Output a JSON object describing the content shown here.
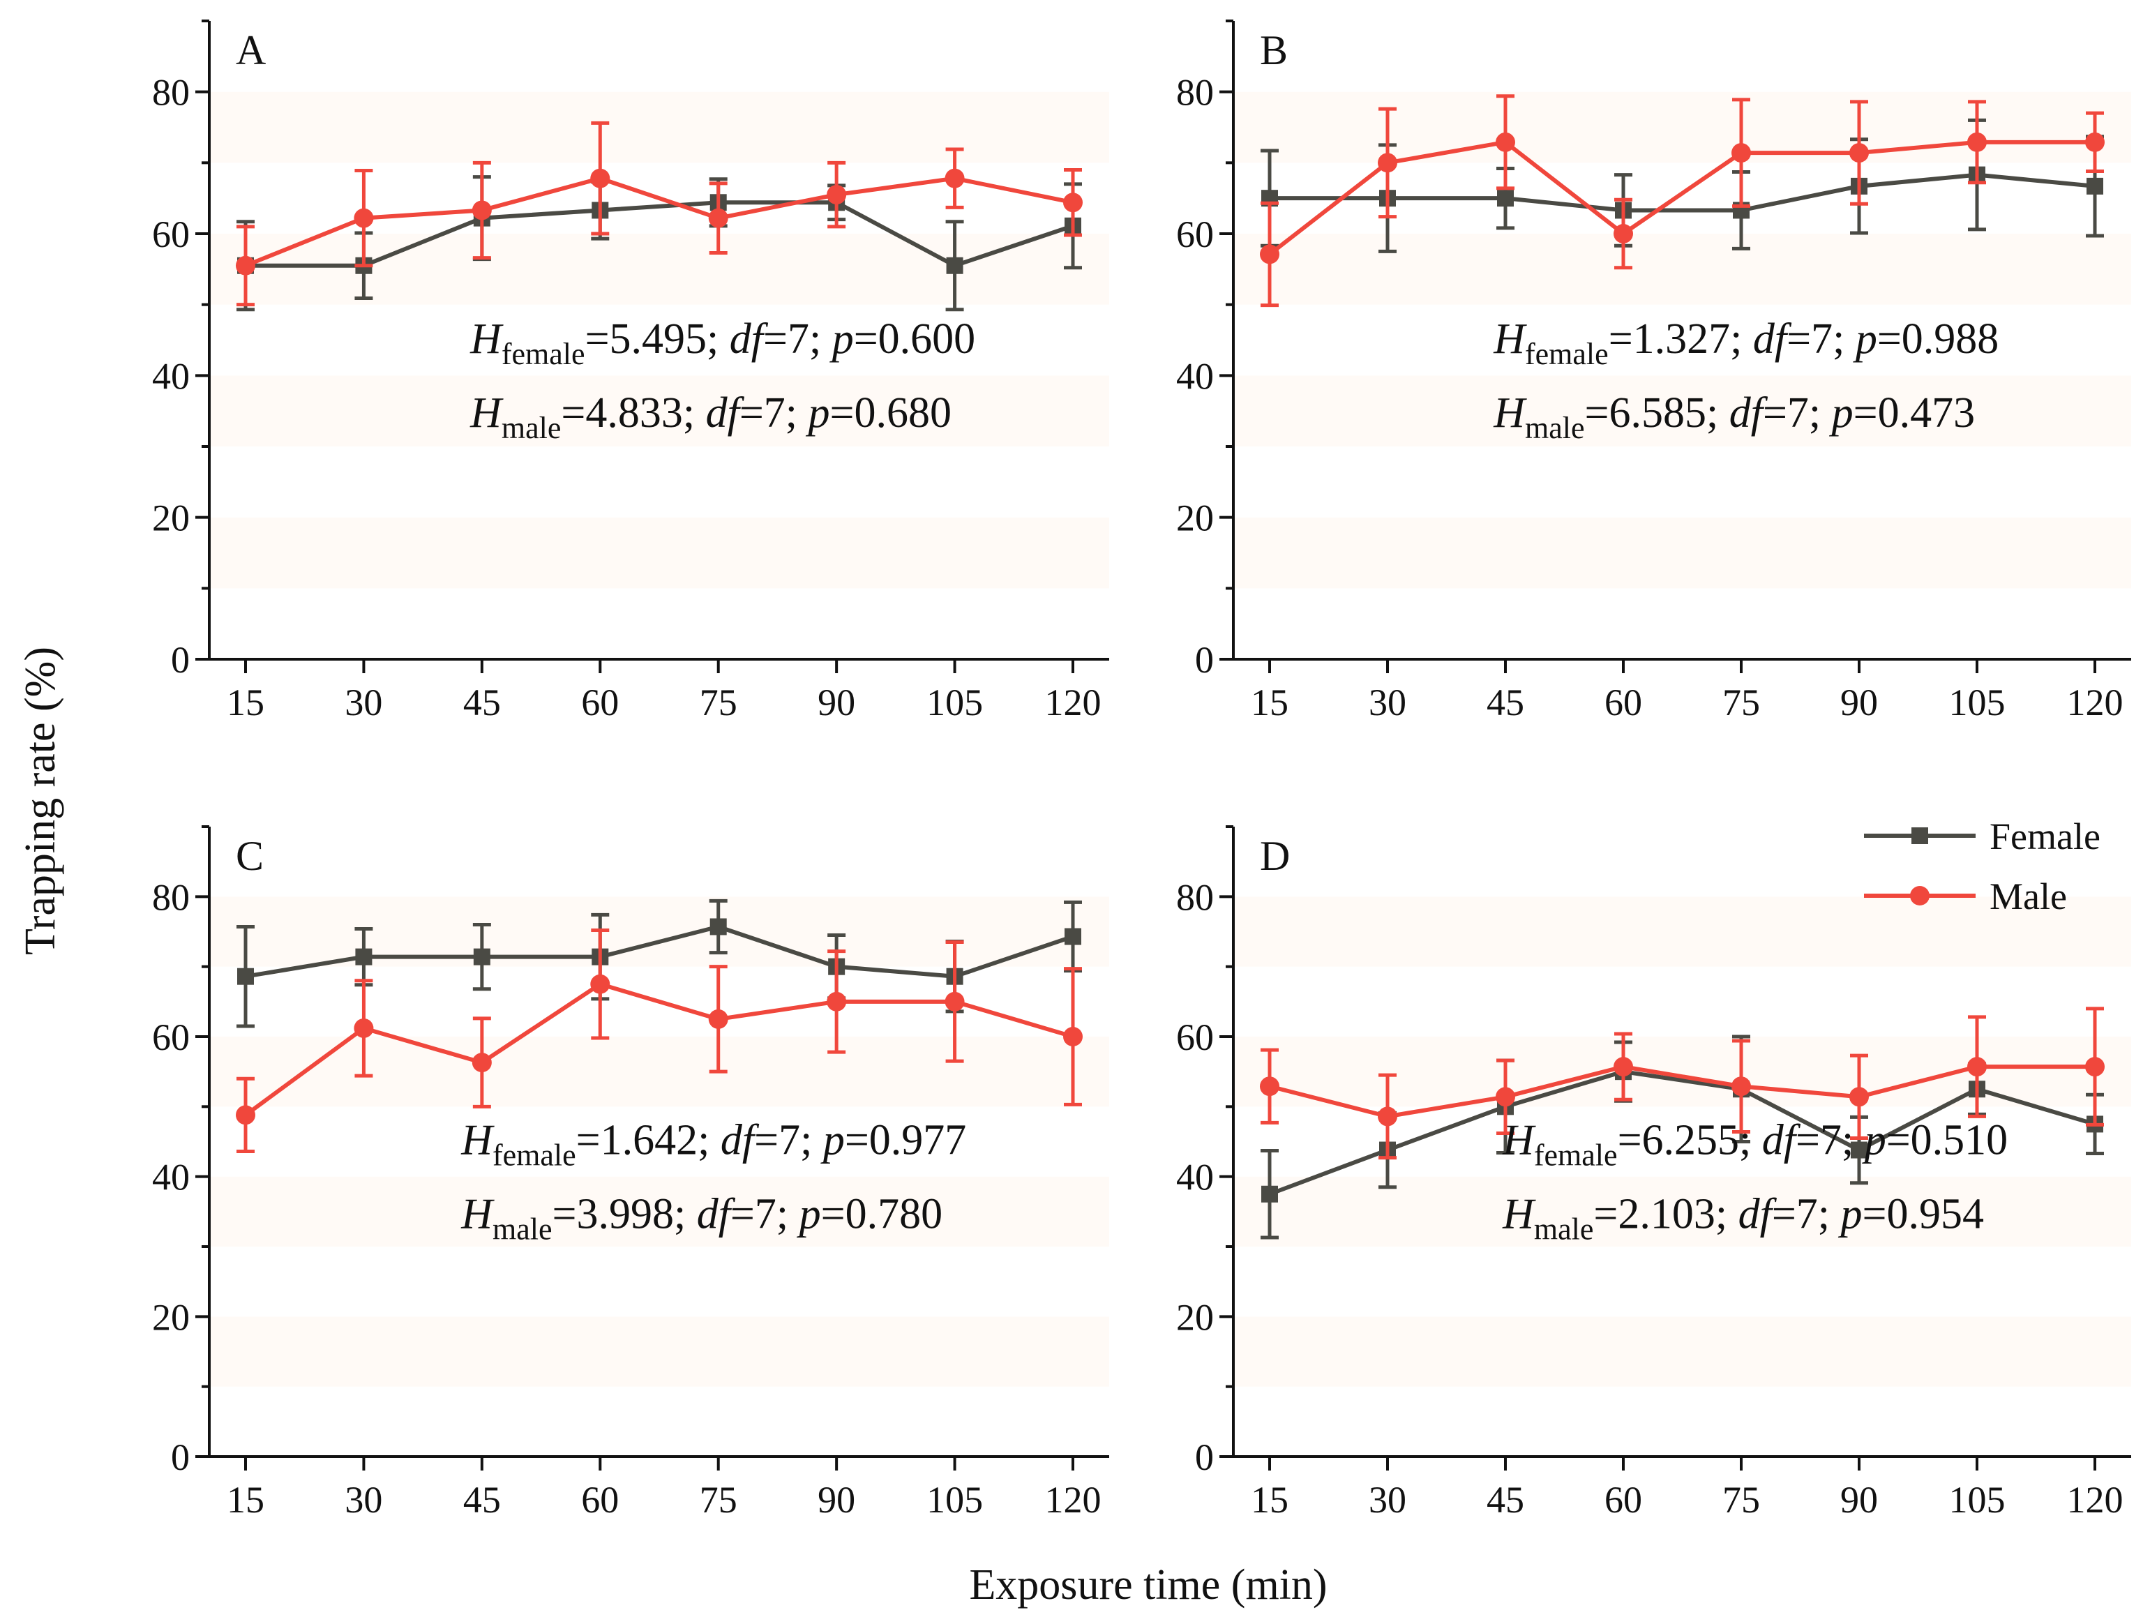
{
  "chart_data": {
    "type": "line",
    "xlabel": "Exposure time (min)",
    "ylabel": "Trapping rate (%)",
    "x": [
      15,
      30,
      45,
      60,
      75,
      90,
      105,
      120
    ],
    "ylim": [
      0,
      90
    ],
    "yticks": [
      0,
      20,
      40,
      60,
      80
    ],
    "legend": {
      "placement": "top-right of panel D",
      "entries": [
        {
          "name": "Female",
          "color": "#4a4a44",
          "marker": "square"
        },
        {
          "name": "Male",
          "color": "#f0473c",
          "marker": "circle"
        }
      ]
    },
    "panels": [
      {
        "id": "A",
        "series": [
          {
            "name": "Female",
            "values": [
              55.5,
              55.5,
              62.2,
              63.3,
              64.4,
              64.4,
              55.5,
              61.1
            ],
            "errors": [
              6.2,
              4.6,
              5.8,
              4.0,
              3.3,
              2.4,
              6.2,
              5.9
            ]
          },
          {
            "name": "Male",
            "values": [
              55.5,
              62.2,
              63.3,
              67.8,
              62.2,
              65.5,
              67.8,
              64.4
            ],
            "errors": [
              5.5,
              6.7,
              6.7,
              7.8,
              4.9,
              4.5,
              4.1,
              4.6
            ]
          }
        ],
        "stats": [
          {
            "symbol": "H",
            "sub": "female",
            "rest": "=5.495; ",
            "df_label": "df",
            "df_value": "=7; ",
            "p_label": "p",
            "p_value": "=0.600"
          },
          {
            "symbol": "H",
            "sub": "male",
            "rest": "=4.833; ",
            "df_label": "df",
            "df_value": "=7; ",
            "p_label": "p",
            "p_value": "=0.680"
          }
        ]
      },
      {
        "id": "B",
        "series": [
          {
            "name": "Female",
            "values": [
              65.0,
              65.0,
              65.0,
              63.3,
              63.3,
              66.7,
              68.3,
              66.7
            ],
            "errors": [
              6.7,
              7.5,
              4.2,
              5.0,
              5.4,
              6.6,
              7.7,
              7.0
            ]
          },
          {
            "name": "Male",
            "values": [
              57.1,
              70.0,
              72.9,
              60.0,
              71.4,
              71.4,
              72.9,
              72.9
            ],
            "errors": [
              7.2,
              7.6,
              6.5,
              4.8,
              7.5,
              7.2,
              5.7,
              4.1
            ]
          }
        ],
        "stats": [
          {
            "symbol": "H",
            "sub": "female",
            "rest": "=1.327; ",
            "df_label": "df",
            "df_value": "=7; ",
            "p_label": "p",
            "p_value": "=0.988"
          },
          {
            "symbol": "H",
            "sub": "male",
            "rest": "=6.585; ",
            "df_label": "df",
            "df_value": "=7; ",
            "p_label": "p",
            "p_value": "=0.473"
          }
        ]
      },
      {
        "id": "C",
        "series": [
          {
            "name": "Female",
            "values": [
              68.6,
              71.4,
              71.4,
              71.4,
              75.7,
              70.0,
              68.6,
              74.3
            ],
            "errors": [
              7.1,
              4.0,
              4.6,
              6.0,
              3.7,
              4.5,
              5.0,
              4.9
            ]
          },
          {
            "name": "Male",
            "values": [
              48.8,
              61.2,
              56.3,
              67.5,
              62.5,
              65.0,
              65.0,
              60.0
            ],
            "errors": [
              5.2,
              6.8,
              6.3,
              7.7,
              7.5,
              7.2,
              8.5,
              9.7
            ]
          }
        ],
        "stats": [
          {
            "symbol": "H",
            "sub": "female",
            "rest": "=1.642; ",
            "df_label": "df",
            "df_value": "=7; ",
            "p_label": "p",
            "p_value": "=0.977"
          },
          {
            "symbol": "H",
            "sub": "male",
            "rest": "=3.998; ",
            "df_label": "df",
            "df_value": "=7; ",
            "p_label": "p",
            "p_value": "=0.780"
          }
        ]
      },
      {
        "id": "D",
        "series": [
          {
            "name": "Female",
            "values": [
              37.5,
              43.8,
              50.0,
              55.0,
              52.5,
              43.8,
              52.5,
              47.5
            ],
            "errors": [
              6.2,
              5.3,
              6.6,
              4.2,
              7.5,
              4.7,
              3.6,
              4.2
            ]
          },
          {
            "name": "Male",
            "values": [
              52.9,
              48.6,
              51.4,
              55.7,
              52.9,
              51.4,
              55.7,
              55.7
            ],
            "errors": [
              5.2,
              5.9,
              5.2,
              4.7,
              6.5,
              5.9,
              7.1,
              8.3
            ]
          }
        ],
        "stats": [
          {
            "symbol": "H",
            "sub": "female",
            "rest": "=6.255; ",
            "df_label": "df",
            "df_value": "=7; ",
            "p_label": "p",
            "p_value": "=0.510"
          },
          {
            "symbol": "H",
            "sub": "male",
            "rest": "=2.103; ",
            "df_label": "df",
            "df_value": "=7; ",
            "p_label": "p",
            "p_value": "=0.954"
          }
        ]
      }
    ]
  }
}
